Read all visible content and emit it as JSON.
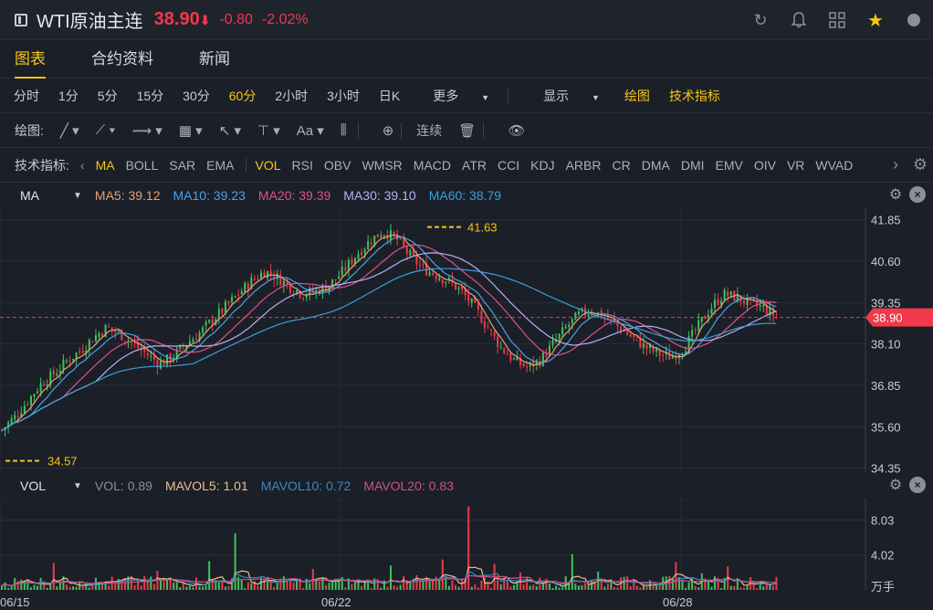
{
  "header": {
    "title": "WTI原油主连",
    "price": "38.90",
    "arrow": "⬇",
    "change": "-0.80",
    "change_pct": "-2.02%",
    "price_color": "#f0394a"
  },
  "tabs": [
    {
      "label": "图表",
      "active": true
    },
    {
      "label": "合约资料"
    },
    {
      "label": "新闻"
    }
  ],
  "periods": {
    "items": [
      "分时",
      "1分",
      "5分",
      "15分",
      "30分",
      "60分",
      "2小时",
      "3小时",
      "日K"
    ],
    "active": "60分",
    "more": "更多",
    "display": "显示",
    "draw": "绘图",
    "tech": "技术指标"
  },
  "drawbar": {
    "label": "绘图:",
    "continuous": "连续"
  },
  "indicators": {
    "label": "技术指标:",
    "items": [
      "MA",
      "BOLL",
      "SAR",
      "EMA",
      "VOL",
      "RSI",
      "OBV",
      "WMSR",
      "MACD",
      "ATR",
      "CCI",
      "KDJ",
      "ARBR",
      "CR",
      "DMA",
      "DMI",
      "EMV",
      "OIV",
      "VR",
      "WVAD"
    ],
    "active": [
      "MA",
      "VOL"
    ]
  },
  "ma_legend": {
    "name": "MA",
    "items": [
      {
        "label": "MA5: 39.12",
        "color": "#e8a07a"
      },
      {
        "label": "MA10: 39.23",
        "color": "#4aa3e0"
      },
      {
        "label": "MA20: 39.39",
        "color": "#e0508a"
      },
      {
        "label": "MA30: 39.10",
        "color": "#b8b0f0"
      },
      {
        "label": "MA60: 38.79",
        "color": "#3aa0d8"
      }
    ]
  },
  "vol_legend": {
    "name": "VOL",
    "items": [
      {
        "label": "VOL: 0.89",
        "color": "#8a8f9c"
      },
      {
        "label": "MAVOL5: 1.01",
        "color": "#e8c090"
      },
      {
        "label": "MAVOL10: 0.72",
        "color": "#3a8ac0"
      },
      {
        "label": "MAVOL20: 0.83",
        "color": "#d0508a"
      }
    ]
  },
  "chart_data": {
    "type": "candlestick",
    "y_axis": [
      "41.85",
      "40.60",
      "39.35",
      "38.10",
      "36.85",
      "35.60",
      "34.35"
    ],
    "ylim": [
      34.2,
      42.2
    ],
    "current_price": "38.90",
    "high_label": "41.63",
    "low_label": "34.57",
    "x_labels": [
      "06/15",
      "06/22",
      "06/28"
    ],
    "vol_axis": [
      "8.03",
      "4.02"
    ],
    "vol_unit": "万手",
    "close_path": [
      35.5,
      35.9,
      36.4,
      36.9,
      37.2,
      37.6,
      37.9,
      38.3,
      38.6,
      38.4,
      38.1,
      37.8,
      37.5,
      37.7,
      38.1,
      38.4,
      38.8,
      39.2,
      39.6,
      40.0,
      40.3,
      40.1,
      39.8,
      39.6,
      39.7,
      39.9,
      40.3,
      40.8,
      41.2,
      41.5,
      41.3,
      40.8,
      40.4,
      40.2,
      40.0,
      39.7,
      39.2,
      38.6,
      38.0,
      37.6,
      37.4,
      37.6,
      38.1,
      38.6,
      39.0,
      39.1,
      38.9,
      38.6,
      38.3,
      38.0,
      37.8,
      37.7,
      38.0,
      38.6,
      39.2,
      39.6,
      39.5,
      39.3,
      39.2,
      38.9
    ],
    "vol_spikes": [
      0.5,
      1.2,
      3.1,
      1.0,
      0.8,
      1.6,
      2.2,
      0.9,
      3.3,
      6.5,
      1.4,
      1.1,
      2.4,
      1.3,
      1.0,
      2.8,
      1.7,
      3.5,
      9.6,
      3.0,
      2.0,
      1.3,
      4.1,
      2.1,
      1.5,
      1.1,
      3.2,
      1.9,
      2.7,
      1.0
    ]
  }
}
